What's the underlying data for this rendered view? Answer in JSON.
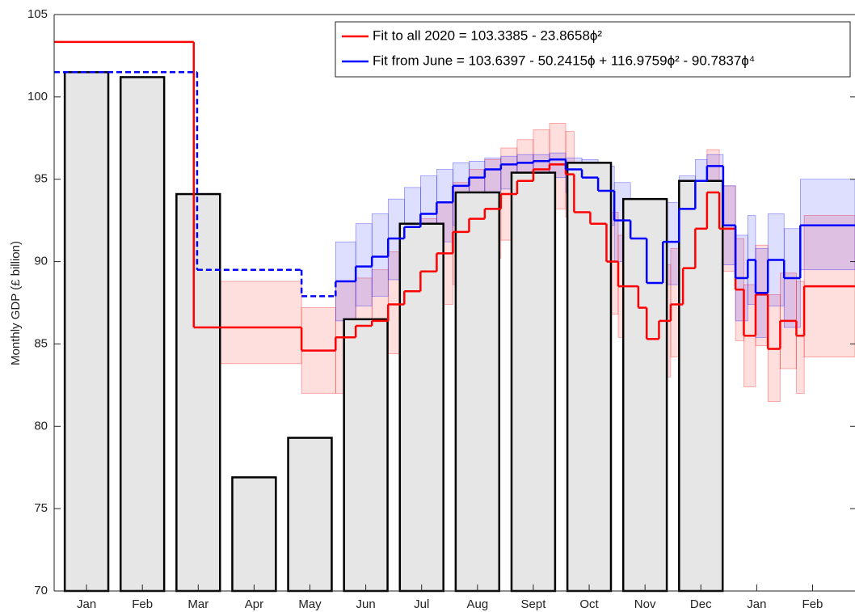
{
  "chart_data": {
    "type": "bar",
    "ylabel": "Monthly GDP (£ billion)",
    "xlim": [
      0.42,
      14.76
    ],
    "xticks": [
      {
        "value": 1,
        "label": "Jan"
      },
      {
        "value": 2,
        "label": "Feb"
      },
      {
        "value": 3,
        "label": "Mar"
      },
      {
        "value": 4,
        "label": "Apr"
      },
      {
        "value": 5,
        "label": "May"
      },
      {
        "value": 6,
        "label": "Jun"
      },
      {
        "value": 7,
        "label": "Jul"
      },
      {
        "value": 8,
        "label": "Aug"
      },
      {
        "value": 9,
        "label": "Sept"
      },
      {
        "value": 10,
        "label": "Oct"
      },
      {
        "value": 11,
        "label": "Nov"
      },
      {
        "value": 12,
        "label": "Dec"
      },
      {
        "value": 13,
        "label": "Jan"
      },
      {
        "value": 14,
        "label": "Feb"
      }
    ],
    "ylim": [
      70,
      105
    ],
    "yticks": [
      70,
      75,
      80,
      85,
      90,
      95,
      100,
      105
    ],
    "grid": false,
    "bars": {
      "x": [
        1,
        2,
        3,
        4,
        5,
        6,
        7,
        8,
        9,
        10,
        11,
        12
      ],
      "values": [
        101.5,
        101.2,
        94.1,
        76.9,
        79.3,
        86.5,
        92.3,
        94.2,
        95.4,
        96.0,
        93.8,
        94.9
      ],
      "color": "#e6e6e6"
    },
    "series": [
      {
        "name": "Fit to all 2020 = 103.3385 - 23.8658ϕ²",
        "color": "#ff0000",
        "x": [
          0.42,
          2.92,
          4.85,
          5.46,
          5.82,
          6.11,
          6.4,
          6.69,
          6.98,
          7.27,
          7.56,
          7.85,
          8.13,
          8.42,
          8.71,
          9.0,
          9.29,
          9.58,
          9.73,
          10.02,
          10.31,
          10.52,
          10.88,
          11.03,
          11.25,
          11.46,
          11.68,
          11.9,
          12.11,
          12.33,
          12.62,
          12.77,
          12.98,
          13.2,
          13.42,
          13.71,
          13.85
        ],
        "values": [
          103.34,
          86.0,
          84.6,
          85.4,
          86.1,
          86.4,
          87.4,
          88.2,
          89.4,
          90.5,
          91.8,
          92.6,
          93.2,
          94.1,
          94.9,
          95.6,
          95.9,
          95.3,
          93.0,
          92.3,
          90.0,
          88.5,
          87.2,
          85.3,
          86.4,
          87.4,
          89.6,
          92.0,
          94.2,
          92.0,
          88.3,
          85.5,
          88.0,
          84.7,
          86.4,
          85.5,
          88.5
        ],
        "lower": [
          null,
          83.8,
          82.0,
          82.0,
          83.4,
          83.6,
          84.4,
          85.2,
          86.4,
          87.4,
          88.6,
          89.4,
          90.2,
          91.3,
          92.4,
          93.0,
          93.2,
          92.7,
          90.2,
          89.2,
          86.8,
          85.4,
          84.0,
          81.9,
          83.0,
          84.2,
          86.6,
          89.2,
          91.8,
          89.4,
          85.2,
          82.4,
          84.9,
          81.5,
          83.5,
          82.0,
          84.2
        ],
        "upper": [
          null,
          88.8,
          87.2,
          88.8,
          89.0,
          89.5,
          90.6,
          91.4,
          92.6,
          93.6,
          94.8,
          95.6,
          96.2,
          96.9,
          97.4,
          98.0,
          98.4,
          97.9,
          95.9,
          95.2,
          93.0,
          91.6,
          90.4,
          88.8,
          89.8,
          90.8,
          92.7,
          94.8,
          96.8,
          94.6,
          91.4,
          88.6,
          91.0,
          88.0,
          89.3,
          88.8,
          92.8
        ]
      },
      {
        "name": "Fit from June = 103.6397 - 50.2415ϕ  + 116.9759ϕ²  - 90.7837ϕ⁴",
        "color": "#0000ff",
        "x": [
          5.46,
          5.82,
          6.11,
          6.4,
          6.69,
          6.98,
          7.27,
          7.56,
          7.85,
          8.13,
          8.42,
          8.71,
          9.0,
          9.29,
          9.58,
          9.87,
          10.16,
          10.45,
          10.74,
          11.03,
          11.32,
          11.61,
          11.9,
          12.11,
          12.4,
          12.62,
          12.84,
          12.98,
          13.2,
          13.49,
          13.78
        ],
        "values": [
          88.8,
          89.7,
          90.3,
          91.4,
          92.1,
          92.9,
          93.6,
          94.6,
          95.1,
          95.6,
          95.9,
          96.0,
          96.1,
          96.2,
          95.6,
          95.1,
          94.3,
          92.5,
          91.4,
          88.7,
          91.2,
          93.2,
          94.9,
          95.8,
          92.2,
          89.0,
          90.1,
          88.1,
          90.1,
          89.0,
          92.2
        ],
        "lower": [
          86.4,
          87.3,
          87.9,
          88.9,
          89.6,
          90.4,
          91.2,
          92.2,
          93.0,
          93.8,
          94.4,
          94.8,
          95.0,
          95.1,
          94.2,
          93.2,
          92.2,
          90.0,
          88.6,
          86.0,
          88.6,
          90.8,
          92.8,
          93.9,
          89.8,
          86.4,
          87.4,
          85.4,
          87.3,
          86.0,
          89.5
        ],
        "upper": [
          91.2,
          92.3,
          92.9,
          93.8,
          94.5,
          95.2,
          95.6,
          96.0,
          96.1,
          96.3,
          96.4,
          96.5,
          96.5,
          96.6,
          96.3,
          96.2,
          95.8,
          94.8,
          93.8,
          91.3,
          93.6,
          95.2,
          96.2,
          96.5,
          94.6,
          91.6,
          92.8,
          90.8,
          92.9,
          92.0,
          95.0
        ],
        "backcast": {
          "x": [
            0.42,
            2.98,
            4.85
          ],
          "values": [
            101.5,
            89.5,
            87.9
          ]
        }
      }
    ]
  }
}
